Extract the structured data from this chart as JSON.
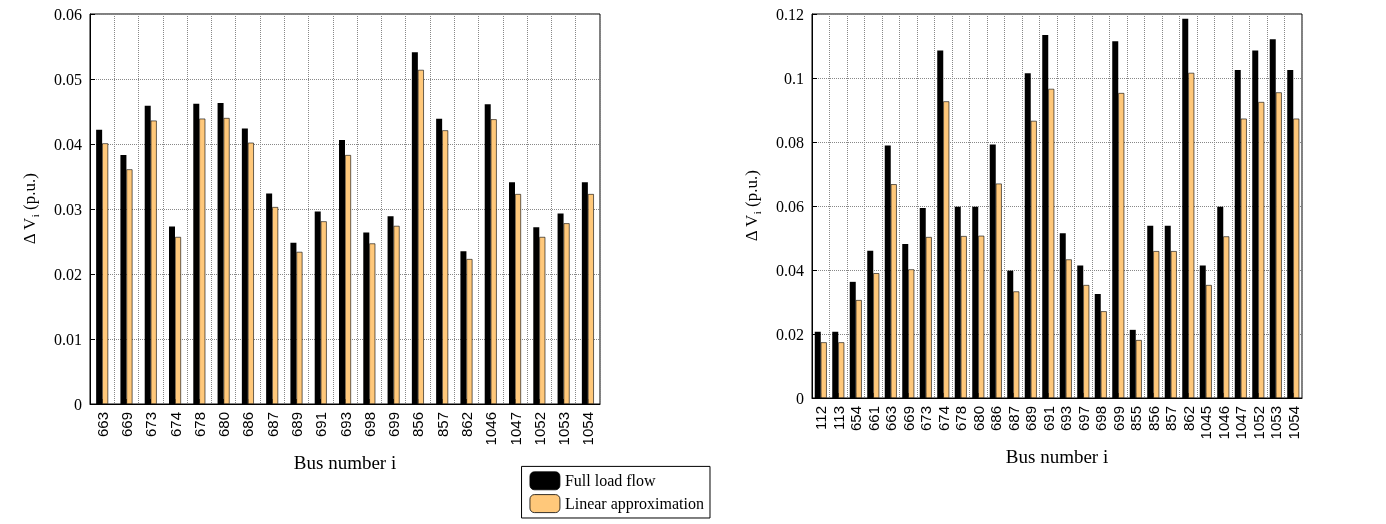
{
  "chart_data": [
    {
      "type": "bar",
      "xlabel": "Bus number i",
      "ylabel": "Δ V$_{i}$ (p.u.)",
      "categories": [
        "663",
        "669",
        "673",
        "674",
        "678",
        "680",
        "686",
        "687",
        "689",
        "691",
        "693",
        "698",
        "699",
        "856",
        "857",
        "862",
        "1046",
        "1047",
        "1052",
        "1053",
        "1054"
      ],
      "series": [
        {
          "name": "Full load flow",
          "color": "#000000",
          "values": [
            0.0422,
            0.0383,
            0.0459,
            0.0273,
            0.0462,
            0.0463,
            0.0424,
            0.0324,
            0.0248,
            0.0296,
            0.0406,
            0.0264,
            0.0289,
            0.0541,
            0.0439,
            0.0235,
            0.0461,
            0.0341,
            0.0272,
            0.0293,
            0.0341
          ]
        },
        {
          "name": "Linear approximation",
          "color": "#ffc87a",
          "values": [
            0.0401,
            0.0361,
            0.0436,
            0.0257,
            0.0439,
            0.044,
            0.0402,
            0.0303,
            0.0234,
            0.0281,
            0.0383,
            0.0247,
            0.0274,
            0.0514,
            0.0421,
            0.0223,
            0.0438,
            0.0323,
            0.0257,
            0.0278,
            0.0323
          ]
        }
      ],
      "ylim": [
        0,
        0.06
      ],
      "yticks": [
        0,
        0.01,
        0.02,
        0.03,
        0.04,
        0.05,
        0.06
      ],
      "grid": true,
      "legend": "bottom right"
    },
    {
      "type": "bar",
      "xlabel": "Bus number i",
      "ylabel": "Δ V$_{i}$ (p.u.)",
      "categories": [
        "112",
        "113",
        "654",
        "661",
        "663",
        "669",
        "673",
        "674",
        "678",
        "680",
        "686",
        "687",
        "689",
        "691",
        "693",
        "697",
        "698",
        "699",
        "855",
        "856",
        "857",
        "862",
        "1045",
        "1046",
        "1047",
        "1052",
        "1053",
        "1054"
      ],
      "series": [
        {
          "color": "#000000",
          "values": [
            0.0207,
            0.0207,
            0.0363,
            0.046,
            0.0789,
            0.0481,
            0.0594,
            0.1086,
            0.0598,
            0.0598,
            0.0792,
            0.0398,
            0.1015,
            0.1134,
            0.0515,
            0.0414,
            0.0325,
            0.1115,
            0.0213,
            0.0538,
            0.0538,
            0.1185,
            0.0414,
            0.0598,
            0.1025,
            0.1086,
            0.1121,
            0.1025
          ]
        },
        {
          "color": "#ffc87a",
          "values": [
            0.0174,
            0.0174,
            0.0306,
            0.039,
            0.0668,
            0.0402,
            0.0503,
            0.0927,
            0.0506,
            0.0507,
            0.067,
            0.0333,
            0.0866,
            0.0966,
            0.0433,
            0.0353,
            0.0271,
            0.0953,
            0.0181,
            0.0459,
            0.0459,
            0.1016,
            0.0353,
            0.0505,
            0.0873,
            0.0925,
            0.0955,
            0.0873
          ]
        }
      ],
      "ylim": [
        0,
        0.12
      ],
      "yticks": [
        0,
        0.02,
        0.04,
        0.06,
        0.08,
        0.1,
        0.12
      ],
      "grid": true
    }
  ]
}
